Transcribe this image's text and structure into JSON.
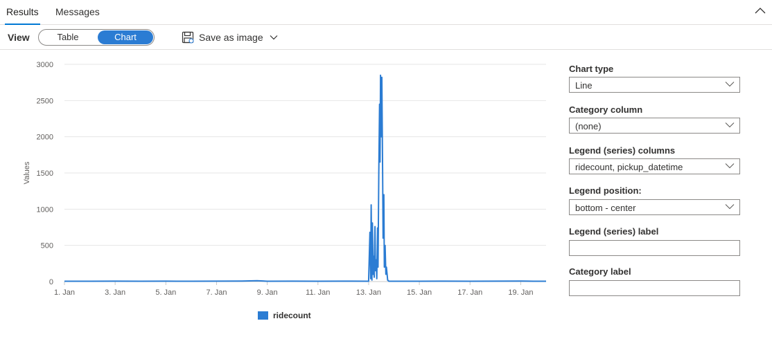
{
  "tabs": [
    {
      "label": "Results",
      "active": true
    },
    {
      "label": "Messages",
      "active": false
    }
  ],
  "toolbar": {
    "view_label": "View",
    "toggle": {
      "table_label": "Table",
      "chart_label": "Chart",
      "selected": "Chart"
    },
    "save_label": "Save as image"
  },
  "colors": {
    "accent": "#0078d4",
    "series": "#2b7cd3"
  },
  "settings": {
    "chart_type": {
      "label": "Chart type",
      "value": "Line"
    },
    "category_column": {
      "label": "Category column",
      "value": "(none)"
    },
    "legend_columns": {
      "label": "Legend (series) columns",
      "value": "ridecount, pickup_datetime"
    },
    "legend_position": {
      "label": "Legend position:",
      "value": "bottom - center"
    },
    "legend_label": {
      "label": "Legend (series) label",
      "value": ""
    },
    "category_label": {
      "label": "Category label",
      "value": ""
    }
  },
  "chart_data": {
    "type": "line",
    "ylabel": "Values",
    "xlabel": "",
    "ylim": [
      0,
      3000
    ],
    "yticks": [
      0,
      500,
      1000,
      1500,
      2000,
      2500,
      3000
    ],
    "xlim": [
      "1. Jan",
      "20. Jan"
    ],
    "xticks": [
      "1. Jan",
      "3. Jan",
      "5. Jan",
      "7. Jan",
      "9. Jan",
      "11. Jan",
      "13. Jan",
      "15. Jan",
      "17. Jan",
      "19. Jan"
    ],
    "grid": true,
    "legend_position": "bottom-center",
    "series": [
      {
        "name": "ridecount",
        "x_days": [
          1.0,
          2.0,
          3.0,
          4.0,
          5.0,
          6.0,
          7.0,
          8.0,
          8.6,
          9.0,
          10.0,
          11.0,
          12.0,
          13.0,
          13.05,
          13.08,
          13.1,
          13.13,
          13.15,
          13.18,
          13.2,
          13.22,
          13.25,
          13.27,
          13.3,
          13.32,
          13.35,
          13.37,
          13.4,
          13.43,
          13.45,
          13.47,
          13.5,
          13.52,
          13.55,
          13.57,
          13.6,
          13.62,
          13.65,
          13.68,
          13.7,
          13.75,
          13.8,
          14.0,
          15.0,
          16.0,
          17.0,
          18.0,
          19.0,
          19.5,
          20.0
        ],
        "values": [
          5,
          5,
          6,
          5,
          6,
          5,
          6,
          8,
          12,
          5,
          6,
          5,
          6,
          5,
          680,
          40,
          1060,
          20,
          810,
          100,
          350,
          60,
          760,
          150,
          300,
          40,
          740,
          200,
          1500,
          2450,
          1650,
          2850,
          2000,
          2820,
          1550,
          600,
          1200,
          200,
          500,
          100,
          200,
          20,
          5,
          5,
          5,
          6,
          5,
          6,
          8,
          5,
          5
        ]
      }
    ]
  }
}
